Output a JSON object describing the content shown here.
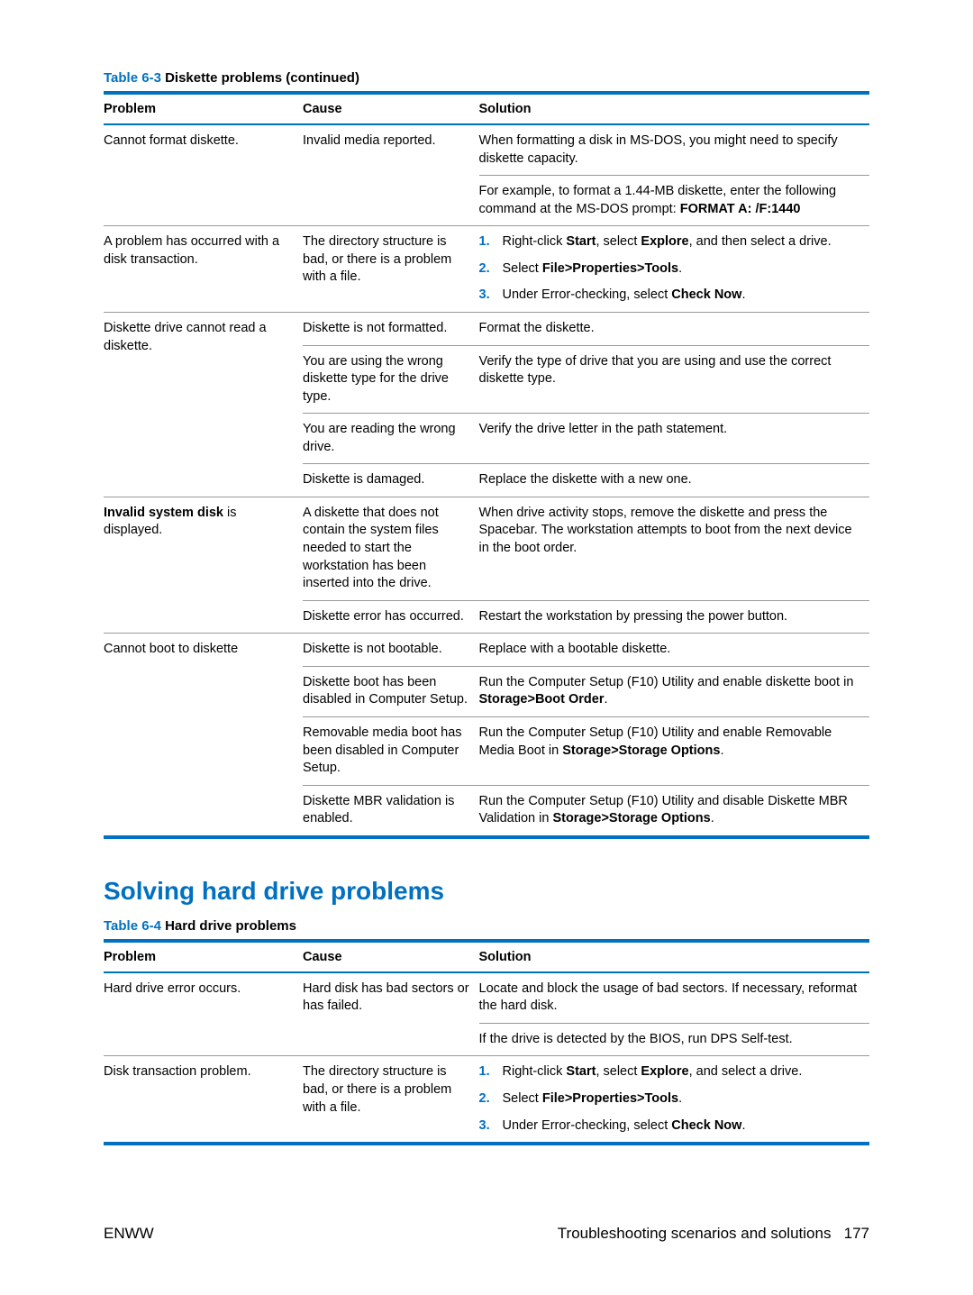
{
  "table1": {
    "caption_num": "Table 6-3",
    "caption_title": "  Diskette problems (continued)",
    "headers": {
      "problem": "Problem",
      "cause": "Cause",
      "solution": "Solution"
    },
    "r1": {
      "problem": "Cannot format diskette.",
      "cause": "Invalid media reported.",
      "sol1a": "When formatting a disk in MS-DOS, you might need to specify diskette capacity.",
      "sol2a": "For example, to format a 1.44-MB diskette, enter the following command at the MS-DOS prompt: ",
      "sol2b": "FORMAT A: /F:1440"
    },
    "r2": {
      "problem": "A problem has occurred with a disk transaction.",
      "cause": "The directory structure is bad, or there is a problem with a file.",
      "s1a": "Right-click ",
      "s1b": "Start",
      "s1c": ", select ",
      "s1d": "Explore",
      "s1e": ", and then select a drive.",
      "s2a": "Select ",
      "s2b": "File>Properties>Tools",
      "s2c": ".",
      "s3a": "Under Error-checking, select ",
      "s3b": "Check Now",
      "s3c": "."
    },
    "r3": {
      "problem": "Diskette drive cannot read a diskette.",
      "c1": "Diskette is not formatted.",
      "s1": "Format the diskette.",
      "c2": "You are using the wrong diskette type for the drive type.",
      "s2": "Verify the type of drive that you are using and use the correct diskette type.",
      "c3": "You are reading the wrong drive.",
      "s3": "Verify the drive letter in the path statement.",
      "c4": "Diskette is damaged.",
      "s4": "Replace the diskette with a new one."
    },
    "r4": {
      "p_a": "Invalid system disk",
      "p_b": " is displayed.",
      "c1": "A diskette that does not contain the system files needed to start the workstation has been inserted into the drive.",
      "s1": "When drive activity stops, remove the diskette and press the Spacebar. The workstation attempts to boot from the next device in the boot order.",
      "c2": "Diskette error has occurred.",
      "s2": "Restart the workstation by pressing the power button."
    },
    "r5": {
      "problem": "Cannot boot to diskette",
      "c1": "Diskette is not bootable.",
      "s1": "Replace with a bootable diskette.",
      "c2": "Diskette boot has been disabled in Computer Setup.",
      "s2a": "Run the Computer Setup (F10) Utility and enable diskette boot in ",
      "s2b": "Storage>Boot Order",
      "s2c": ".",
      "c3": "Removable media boot has been disabled in Computer Setup.",
      "s3a": "Run the Computer Setup (F10) Utility and enable Removable Media Boot in ",
      "s3b": "Storage>Storage Options",
      "s3c": ".",
      "c4": "Diskette MBR validation is enabled.",
      "s4a": "Run the Computer Setup (F10) Utility and disable Diskette MBR Validation in ",
      "s4b": "Storage>Storage Options",
      "s4c": "."
    }
  },
  "section2_title": "Solving hard drive problems",
  "table2": {
    "caption_num": "Table 6-4",
    "caption_title": "  Hard drive problems",
    "headers": {
      "problem": "Problem",
      "cause": "Cause",
      "solution": "Solution"
    },
    "r1": {
      "problem": "Hard drive error occurs.",
      "cause": "Hard disk has bad sectors or has failed.",
      "s1": "Locate and block the usage of bad sectors. If necessary, reformat the hard disk.",
      "s2": "If the drive is detected by the BIOS, run DPS Self-test."
    },
    "r2": {
      "problem": "Disk transaction problem.",
      "cause": "The directory structure is bad, or there is a problem with a file.",
      "s1a": "Right-click ",
      "s1b": "Start",
      "s1c": ", select ",
      "s1d": "Explore",
      "s1e": ", and select a drive.",
      "s2a": "Select ",
      "s2b": "File>Properties>Tools",
      "s2c": ".",
      "s3a": "Under Error-checking, select ",
      "s3b": "Check Now",
      "s3c": "."
    }
  },
  "footer": {
    "left": "ENWW",
    "right_text": "Troubleshooting scenarios and solutions",
    "right_page": "177"
  }
}
